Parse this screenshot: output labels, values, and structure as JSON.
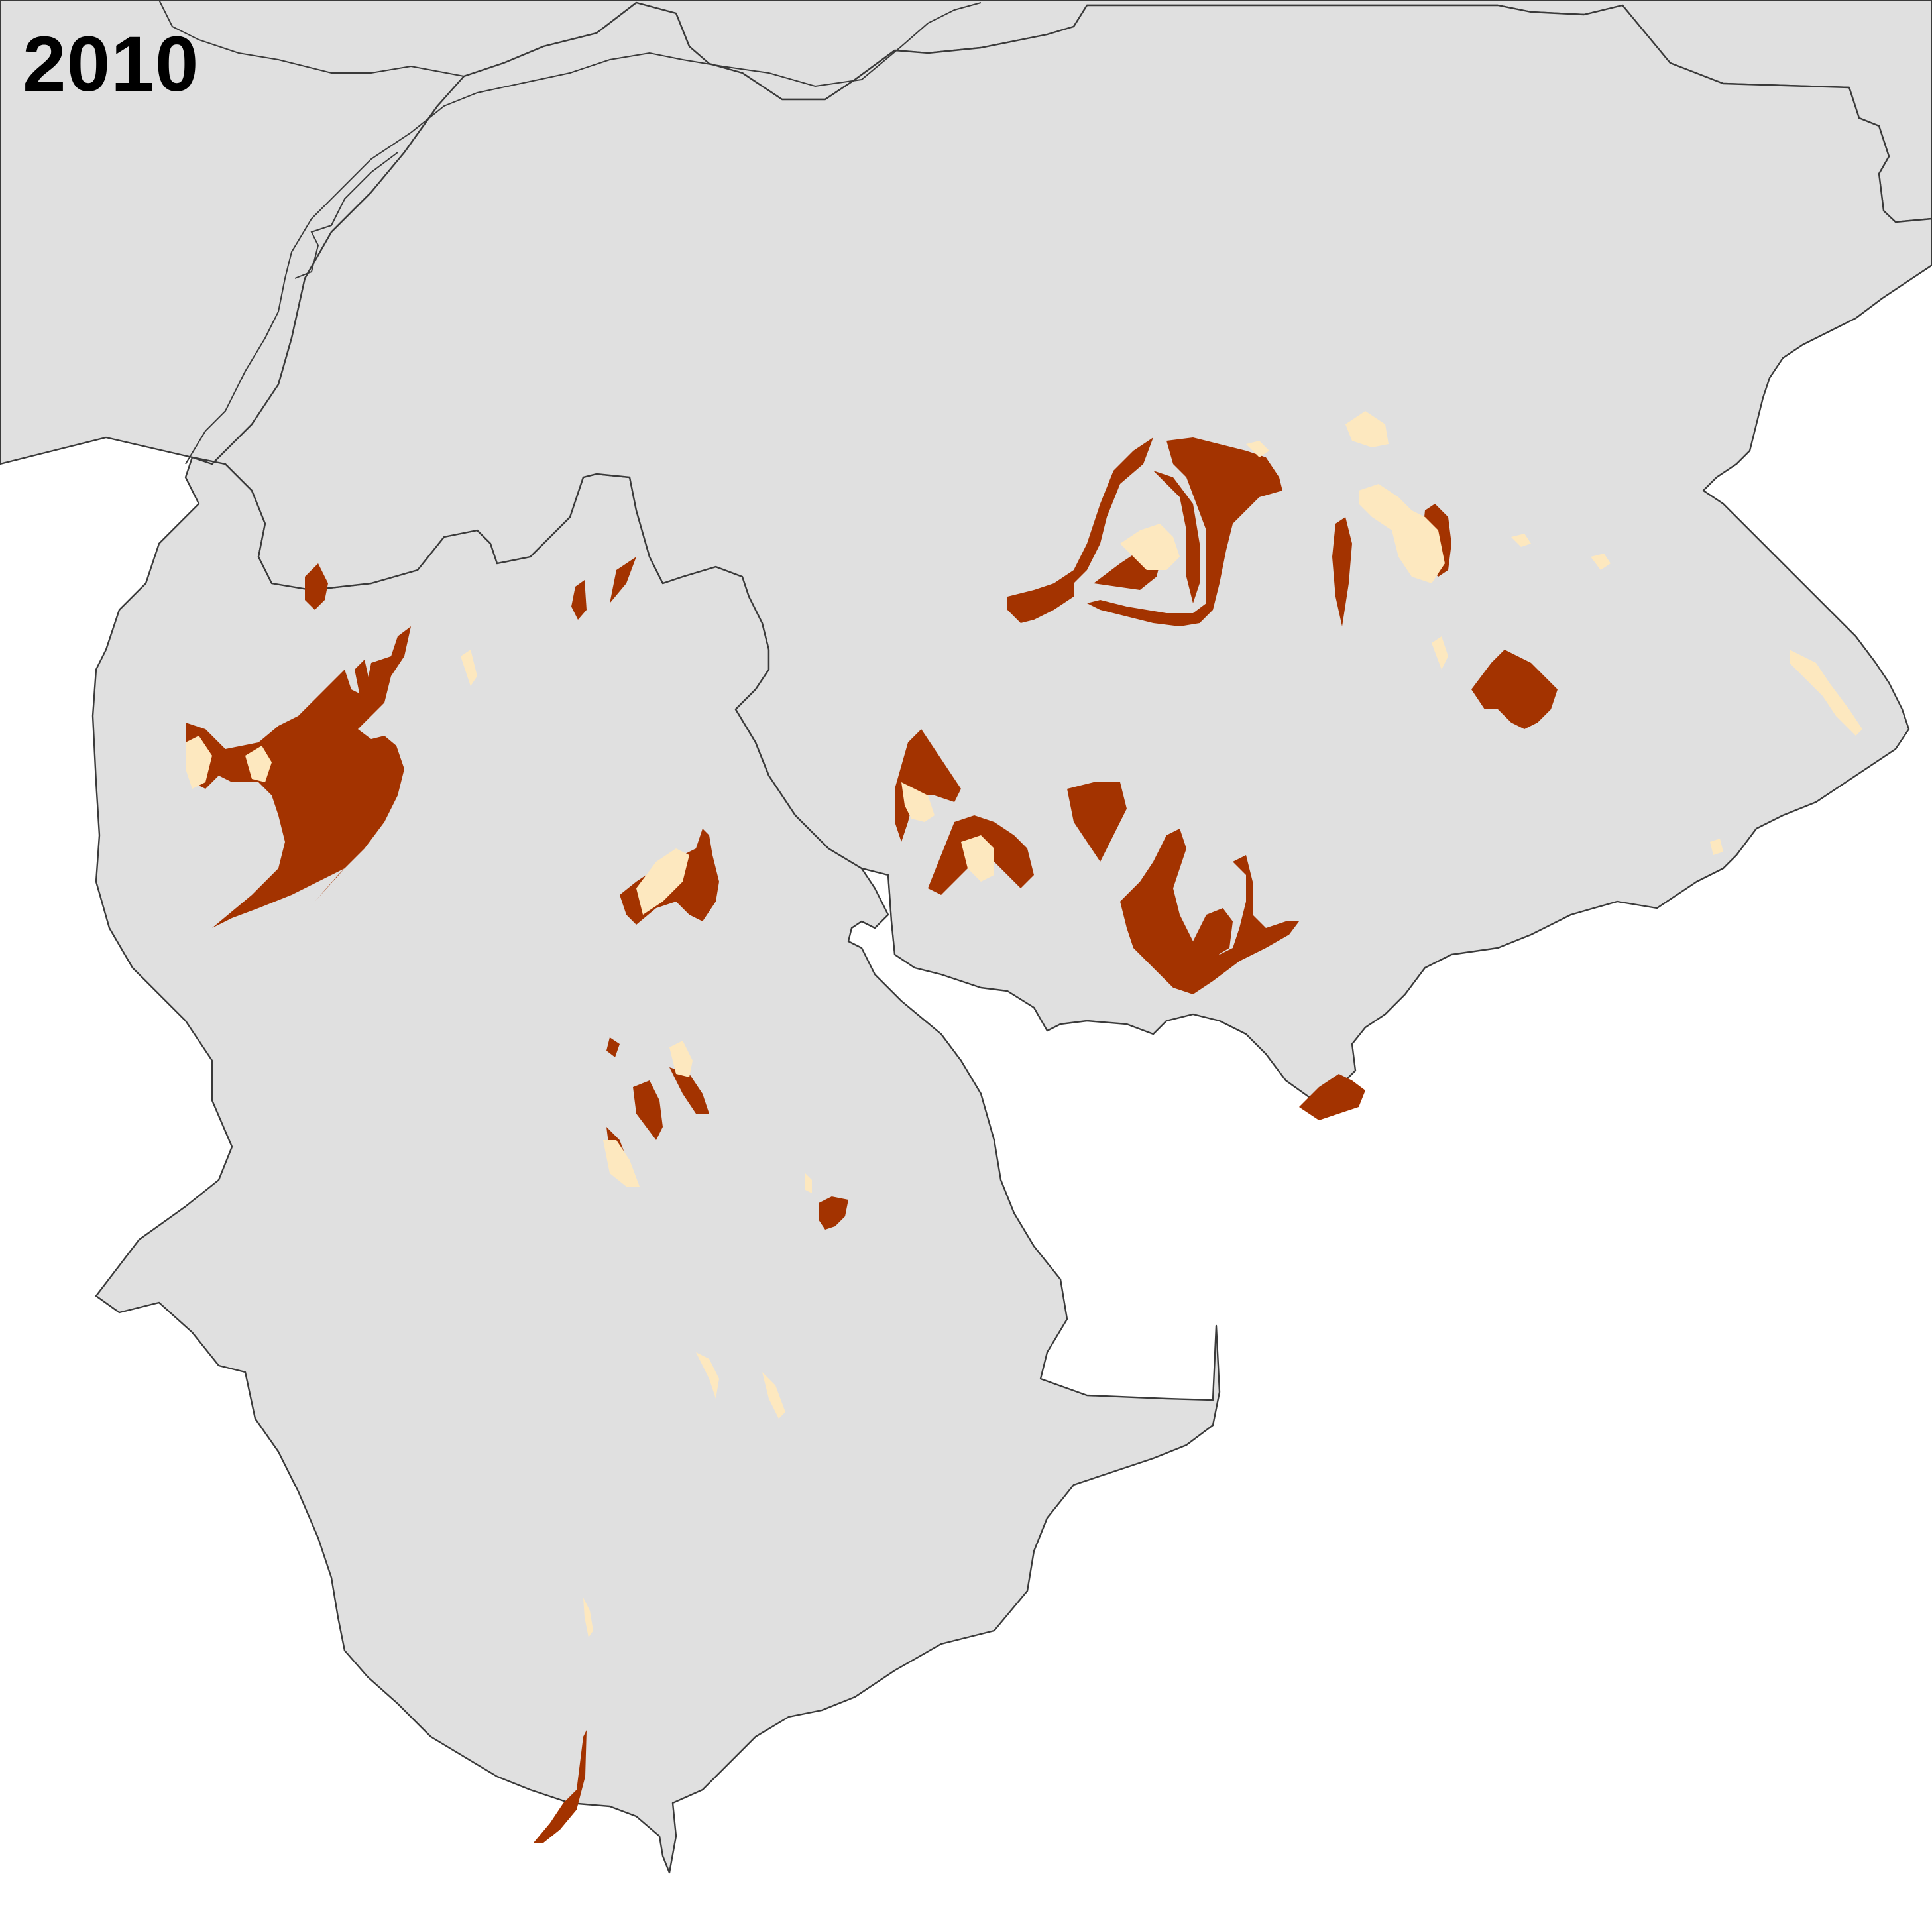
{
  "map": {
    "year": "2010",
    "colors": {
      "background": "#ffffff",
      "land": "#e0e0e0",
      "border": "#3a3a3a",
      "water": "#ffffff",
      "dark_class": "#a33300",
      "light_class": "#fde8bf"
    }
  }
}
